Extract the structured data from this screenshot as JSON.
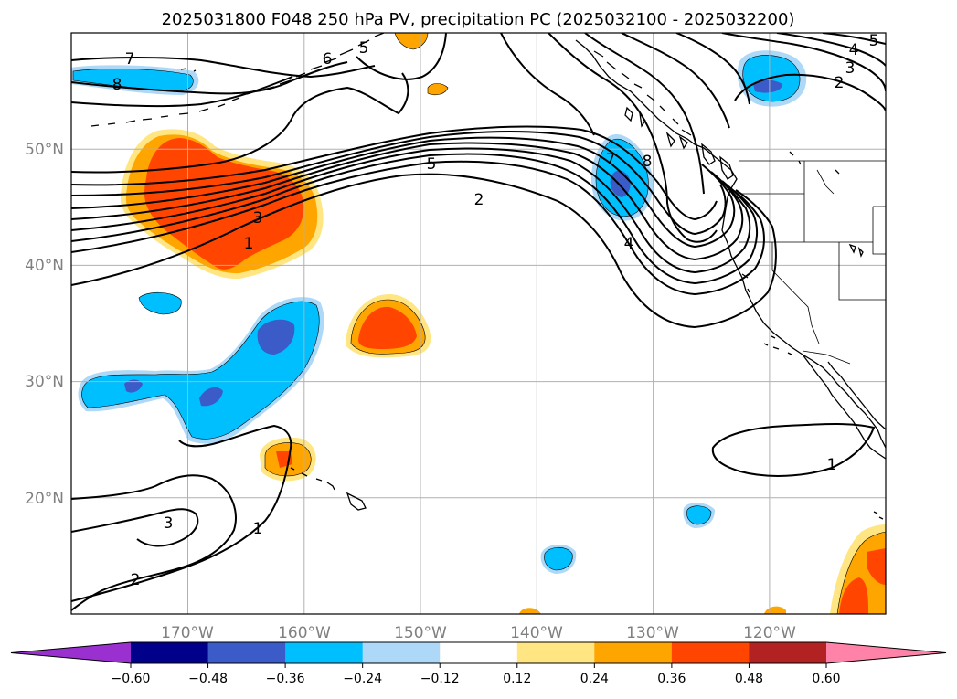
{
  "title": "2025031800 F048 250 hPa PV, precipitation PC (2025032100 - 2025032200)",
  "map": {
    "projection": "PlateCarree",
    "lon_range": [
      -180,
      -110
    ],
    "lat_range": [
      10,
      60
    ],
    "gridlines": true
  },
  "axes": {
    "lon_ticks": [
      "170°W",
      "160°W",
      "150°W",
      "140°W",
      "130°W",
      "120°W"
    ],
    "lat_ticks": [
      "50°N",
      "40°N",
      "30°N",
      "20°N"
    ]
  },
  "colorbar": {
    "orientation": "horizontal",
    "extend": "both",
    "ticks": [
      "−0.60",
      "−0.48",
      "−0.36",
      "−0.24",
      "−0.12",
      "0.12",
      "0.24",
      "0.36",
      "0.48",
      "0.60"
    ],
    "colors": [
      "#9b30d0",
      "#00008b",
      "#3a5bc8",
      "#00bfff",
      "#add8f7",
      "#ffffff",
      "#ffe682",
      "#ffa500",
      "#ff4500",
      "#b22222",
      "#ff82a8"
    ]
  },
  "contour_labels": [
    "7",
    "8",
    "6",
    "5",
    "5",
    "4",
    "3",
    "2",
    "5",
    "2",
    "3",
    "1",
    "7",
    "8",
    "4",
    "1",
    "3",
    "1",
    "2"
  ],
  "fills": {
    "neg_light": "#add8f7",
    "neg_mid": "#00bfff",
    "neg_dark": "#3a5bc8",
    "pos_light": "#ffe682",
    "pos_mid": "#ffa500",
    "pos_dark": "#ff4500"
  }
}
